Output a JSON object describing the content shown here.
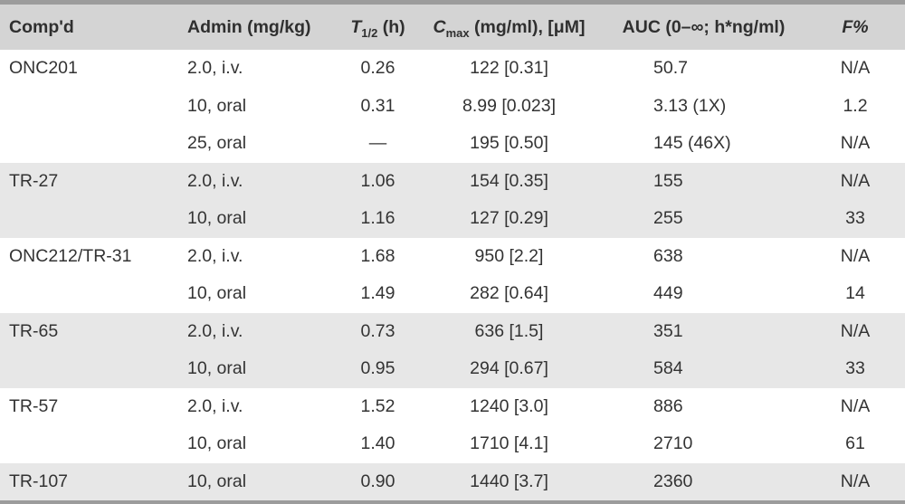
{
  "table": {
    "column_order": [
      "compound",
      "admin",
      "t_half",
      "cmax",
      "auc",
      "f"
    ],
    "headers": {
      "compound": "Comp'd",
      "admin": "Admin (mg/kg)",
      "t_half": {
        "symbol": "T",
        "subscript": "1/2",
        "suffix": " (h)"
      },
      "cmax": {
        "symbol": "C",
        "subscript": "max",
        "suffix": " (mg/ml), [μM]"
      },
      "auc": "AUC (0–∞; h*ng/ml)",
      "f": "F%"
    },
    "rows": [
      {
        "compound": "ONC201",
        "admin": "2.0, i.v.",
        "t_half": "0.26",
        "cmax": "122 [0.31]",
        "auc": "50.7",
        "f": "N/A"
      },
      {
        "compound": "",
        "admin": "10, oral",
        "t_half": "0.31",
        "cmax": "8.99 [0.023]",
        "auc": "3.13 (1X)",
        "f": "1.2"
      },
      {
        "compound": "",
        "admin": "25, oral",
        "t_half": "—",
        "cmax": "195 [0.50]",
        "auc": "145 (46X)",
        "f": "N/A"
      },
      {
        "compound": "TR-27",
        "admin": "2.0, i.v.",
        "t_half": "1.06",
        "cmax": "154 [0.35]",
        "auc": "155",
        "f": "N/A"
      },
      {
        "compound": "",
        "admin": "10, oral",
        "t_half": "1.16",
        "cmax": "127 [0.29]",
        "auc": "255",
        "f": "33"
      },
      {
        "compound": "ONC212/TR-31",
        "admin": "2.0, i.v.",
        "t_half": "1.68",
        "cmax": "950 [2.2]",
        "auc": "638",
        "f": "N/A"
      },
      {
        "compound": "",
        "admin": "10, oral",
        "t_half": "1.49",
        "cmax": "282 [0.64]",
        "auc": "449",
        "f": "14"
      },
      {
        "compound": "TR-65",
        "admin": "2.0, i.v.",
        "t_half": "0.73",
        "cmax": "636 [1.5]",
        "auc": "351",
        "f": "N/A"
      },
      {
        "compound": "",
        "admin": "10, oral",
        "t_half": "0.95",
        "cmax": "294 [0.67]",
        "auc": "584",
        "f": "33"
      },
      {
        "compound": "TR-57",
        "admin": "2.0, i.v.",
        "t_half": "1.52",
        "cmax": "1240 [3.0]",
        "auc": "886",
        "f": "N/A"
      },
      {
        "compound": "",
        "admin": "10, oral",
        "t_half": "1.40",
        "cmax": "1710 [4.1]",
        "auc": "2710",
        "f": "61"
      },
      {
        "compound": "TR-107",
        "admin": "10, oral",
        "t_half": "0.90",
        "cmax": "1440 [3.7]",
        "auc": "2360",
        "f": "N/A"
      }
    ],
    "colors": {
      "rule": "#9c9c9c",
      "header_bg": "#d4d4d4",
      "shaded_row_bg": "#e7e7e7",
      "text": "#333333"
    }
  }
}
